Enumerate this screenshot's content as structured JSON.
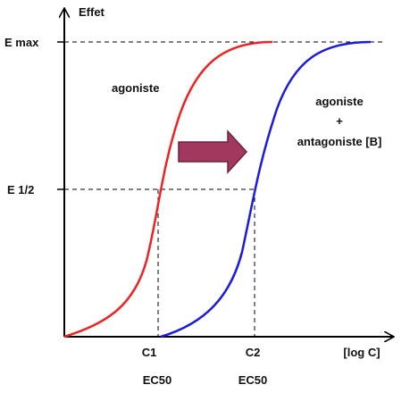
{
  "axes": {
    "y_title": "Effet",
    "x_title": "[log C]"
  },
  "y_labels": {
    "emax": "E max",
    "ehalf": "E 1/2"
  },
  "curves": {
    "agonist": "agoniste",
    "combined": {
      "line1": "agoniste",
      "line2": "+",
      "line3": "antagoniste [B]"
    }
  },
  "x_labels": {
    "c1": "C1",
    "c2": "C2",
    "ec50_1": "EC50",
    "ec50_2": "EC50"
  }
}
